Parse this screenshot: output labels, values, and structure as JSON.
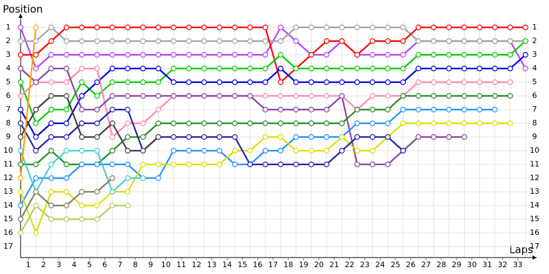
{
  "chart_data": {
    "type": "line",
    "ylabel": "Position",
    "xlabel": "Laps",
    "x": [
      0,
      1,
      2,
      3,
      4,
      5,
      6,
      7,
      8,
      9,
      10,
      11,
      12,
      13,
      14,
      15,
      16,
      17,
      18,
      19,
      20,
      21,
      22,
      23,
      24,
      25,
      26,
      27,
      28,
      29,
      30,
      31,
      32,
      33
    ],
    "xlim": [
      0,
      34
    ],
    "ylim": [
      0,
      18
    ],
    "reverse_y": true,
    "grid": true,
    "xticks": [
      1,
      2,
      3,
      4,
      5,
      6,
      7,
      8,
      9,
      10,
      11,
      12,
      13,
      14,
      15,
      16,
      17,
      18,
      19,
      20,
      21,
      22,
      23,
      24,
      25,
      26,
      27,
      28,
      29,
      30,
      31,
      32,
      33
    ],
    "yticks": [
      1,
      2,
      3,
      4,
      5,
      6,
      7,
      8,
      9,
      10,
      11,
      12,
      13,
      14,
      15,
      16,
      17
    ],
    "series": [
      {
        "color": "#b040ff",
        "values": [
          1,
          4,
          3,
          3,
          3,
          3,
          3,
          3,
          3,
          3,
          3,
          3,
          3,
          3,
          3,
          3,
          3,
          1,
          2,
          3,
          3,
          2,
          3,
          3,
          3,
          3,
          2,
          2,
          2,
          2,
          2,
          2,
          2,
          4
        ]
      },
      {
        "color": "#a0a0a0",
        "values": [
          2,
          2,
          1,
          2,
          2,
          2,
          2,
          2,
          2,
          2,
          2,
          2,
          2,
          2,
          2,
          2,
          2,
          2,
          1,
          1,
          1,
          1,
          1,
          1,
          1,
          1,
          2,
          2,
          2,
          2,
          2,
          2,
          2,
          2
        ]
      },
      {
        "color": "#ff0000",
        "values": [
          3,
          3,
          2,
          1,
          1,
          1,
          1,
          1,
          1,
          1,
          1,
          1,
          1,
          1,
          1,
          1,
          1,
          5,
          4,
          3,
          2,
          2,
          3,
          2,
          2,
          2,
          1,
          1,
          1,
          1,
          1,
          1,
          1,
          1
        ]
      },
      {
        "color": "#00cc00",
        "values": [
          5,
          8,
          7,
          7,
          5,
          6,
          5,
          5,
          5,
          5,
          4,
          4,
          4,
          4,
          4,
          4,
          4,
          3,
          4,
          4,
          4,
          4,
          4,
          4,
          4,
          4,
          3,
          3,
          3,
          3,
          3,
          3,
          3,
          2
        ]
      },
      {
        "color": "#0000dd",
        "values": [
          7,
          9,
          8,
          8,
          6,
          5,
          4,
          4,
          4,
          4,
          5,
          5,
          5,
          5,
          5,
          5,
          5,
          4,
          5,
          5,
          5,
          5,
          5,
          5,
          5,
          5,
          4,
          4,
          4,
          4,
          4,
          4,
          4,
          3
        ]
      },
      {
        "color": "#ff88aa",
        "values": [
          6,
          5,
          5,
          5,
          4,
          4,
          9,
          8,
          8,
          7,
          6,
          6,
          6,
          6,
          6,
          6,
          6,
          6,
          6,
          6,
          6,
          6,
          7,
          6,
          6,
          6,
          5,
          5,
          5,
          5,
          5,
          5,
          5,
          null
        ]
      },
      {
        "color": "#228b22",
        "values": [
          11,
          11,
          10,
          11,
          11,
          11,
          10,
          9,
          9,
          8,
          8,
          8,
          8,
          8,
          8,
          8,
          8,
          8,
          8,
          8,
          8,
          8,
          7,
          7,
          7,
          6,
          6,
          6,
          6,
          6,
          6,
          6,
          6,
          null
        ]
      },
      {
        "color": "#8b40a0",
        "values": [
          4,
          5,
          4,
          4,
          7,
          7,
          6,
          6,
          6,
          6,
          6,
          6,
          6,
          6,
          6,
          6,
          7,
          7,
          7,
          7,
          7,
          6,
          11,
          11,
          11,
          10,
          9,
          9,
          9,
          9,
          null,
          null,
          null,
          null
        ]
      },
      {
        "color": "#1e90ff",
        "values": [
          14,
          12,
          12,
          12,
          11,
          11,
          11,
          11,
          12,
          12,
          10,
          10,
          10,
          10,
          11,
          11,
          10,
          10,
          9,
          9,
          9,
          9,
          8,
          8,
          8,
          7,
          7,
          7,
          7,
          7,
          7,
          7,
          null,
          null
        ]
      },
      {
        "color": "#dddd00",
        "values": [
          13,
          16,
          13,
          13,
          14,
          14,
          13,
          13,
          11,
          11,
          11,
          11,
          11,
          11,
          10,
          10,
          9,
          9,
          10,
          10,
          10,
          9,
          10,
          10,
          9,
          8,
          8,
          8,
          8,
          8,
          8,
          8,
          8,
          null
        ]
      },
      {
        "color": "#2020aa",
        "values": [
          8,
          10,
          9,
          9,
          8,
          8,
          7,
          7,
          10,
          9,
          9,
          9,
          9,
          9,
          9,
          11,
          11,
          11,
          11,
          11,
          11,
          10,
          9,
          9,
          9,
          10,
          null,
          null,
          null,
          null,
          null,
          null,
          null,
          null
        ]
      },
      {
        "color": "#404040",
        "values": [
          9,
          7,
          6,
          6,
          9,
          9,
          8,
          10,
          10,
          9,
          null,
          null,
          null,
          null,
          null,
          null,
          null,
          null,
          null,
          null,
          null,
          null,
          null,
          null,
          null,
          null,
          null,
          null,
          null,
          null,
          null,
          null,
          null,
          null
        ]
      },
      {
        "color": "#40d0d0",
        "values": [
          10,
          13,
          11,
          10,
          10,
          10,
          13,
          12,
          12,
          null,
          null,
          null,
          null,
          null,
          null,
          null,
          null,
          null,
          null,
          null,
          null,
          null,
          null,
          null,
          null,
          null,
          null,
          null,
          null,
          null,
          null,
          null,
          null,
          null
        ]
      },
      {
        "color": "#808060",
        "values": [
          15,
          13,
          14,
          14,
          13,
          13,
          12,
          null,
          null,
          null,
          null,
          null,
          null,
          null,
          null,
          null,
          null,
          null,
          null,
          null,
          null,
          null,
          null,
          null,
          null,
          null,
          null,
          null,
          null,
          null,
          null,
          null,
          null,
          null
        ]
      },
      {
        "color": "#b0d060",
        "values": [
          16,
          14,
          15,
          15,
          15,
          15,
          14,
          14,
          null,
          null,
          null,
          null,
          null,
          null,
          null,
          null,
          null,
          null,
          null,
          null,
          null,
          null,
          null,
          null,
          null,
          null,
          null,
          null,
          null,
          null,
          null,
          null,
          null,
          null
        ]
      },
      {
        "color": "#ffa500",
        "values": [
          12,
          1,
          null,
          null,
          null,
          null,
          null,
          null,
          null,
          null,
          null,
          null,
          null,
          null,
          null,
          null,
          null,
          null,
          null,
          null,
          null,
          null,
          null,
          null,
          null,
          null,
          null,
          null,
          null,
          null,
          null,
          null,
          null,
          null
        ]
      }
    ]
  }
}
